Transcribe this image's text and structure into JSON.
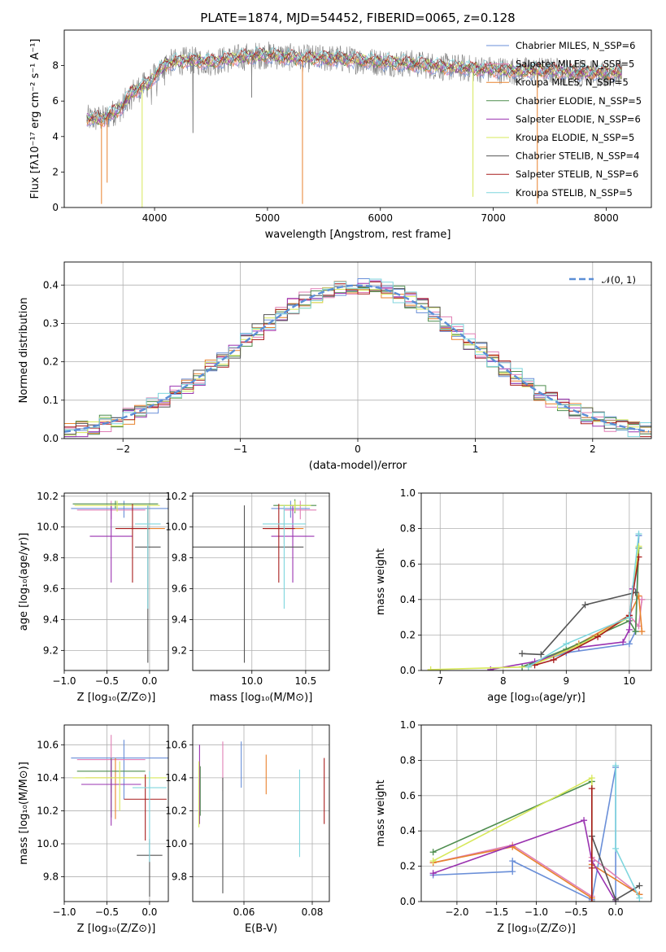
{
  "figure": {
    "title": "PLATE=1874, MJD=54452, FIBERID=0065, z=0.128",
    "colors": {
      "chabrier_miles": "#6a8fd8",
      "salpeter_miles": "#e07fb5",
      "kroupa_miles": "#e8822e",
      "chabrier_elodie": "#4d8d4d",
      "salpeter_elodie": "#9a33b0",
      "kroupa_elodie": "#d7e85a",
      "chabrier_stelib": "#555555",
      "salpeter_stelib": "#a81d1d",
      "kroupa_stelib": "#7fd6de",
      "spectrum_gray": "#808080",
      "gaussian": "#5b8ed6",
      "grid": "#b0b0b0"
    }
  },
  "chart_data": [
    {
      "id": "spectrum",
      "type": "line",
      "xlabel": "wavelength [Angstrom, rest frame]",
      "ylabel": "Flux [fλ10⁻¹⁷ erg cm⁻² s⁻¹ A⁻¹]",
      "xlim": [
        3200,
        8400
      ],
      "ylim": [
        0,
        10
      ],
      "xticks": [
        4000,
        5000,
        6000,
        7000,
        8000
      ],
      "yticks": [
        0,
        2,
        4,
        6,
        8
      ],
      "grid": false,
      "legend_position": "right",
      "legend": [
        "Chabrier MILES, N_SSP=6",
        "Salpeter MILES, N_SSP=5",
        "Kroupa MILES, N_SSP=5",
        "Chabrier ELODIE, N_SSP=5",
        "Salpeter ELODIE, N_SSP=6",
        "Kroupa ELODIE, N_SSP=5",
        "Chabrier STELIB, N_SSP=4",
        "Salpeter STELIB, N_SSP=6",
        "Kroupa STELIB, N_SSP=5"
      ],
      "continuum": {
        "x": [
          3400,
          3550,
          3700,
          3800,
          3950,
          4100,
          4300,
          4500,
          4800,
          5000,
          5300,
          5600,
          6000,
          6300,
          6600,
          6900,
          7200,
          7500,
          7800,
          8100
        ],
        "y": [
          5.0,
          5.0,
          5.6,
          6.5,
          7.0,
          8.1,
          8.3,
          8.2,
          8.5,
          8.6,
          8.4,
          8.4,
          8.2,
          8.1,
          7.9,
          7.8,
          7.7,
          7.7,
          7.6,
          7.6
        ]
      },
      "absorption_lines": [
        {
          "x": 3530,
          "y": 0.2
        },
        {
          "x": 3580,
          "y": 1.4
        },
        {
          "x": 3890,
          "y": 0.0
        },
        {
          "x": 4340,
          "y": 4.2
        },
        {
          "x": 4860,
          "y": 6.2
        },
        {
          "x": 5310,
          "y": 0.2
        },
        {
          "x": 6820,
          "y": 0.6
        },
        {
          "x": 7390,
          "y": 0.2
        }
      ]
    },
    {
      "id": "residuals",
      "type": "line",
      "xlabel": "(data-model)/error",
      "ylabel": "Normed distribution",
      "xlim": [
        -2.5,
        2.5
      ],
      "ylim": [
        0,
        0.46
      ],
      "xticks": [
        -2,
        -1,
        0,
        1,
        2
      ],
      "yticks": [
        0.0,
        0.1,
        0.2,
        0.3,
        0.4
      ],
      "grid": true,
      "legend": [
        "𝒩(0, 1)"
      ],
      "legend_position": "top-right",
      "gaussian": {
        "mu": 0,
        "sigma": 1
      }
    },
    {
      "id": "age_vs_Z",
      "type": "scatter",
      "xlabel": "Z [log₁₀(Z/Z⊙)]",
      "ylabel": "age  [log₁₀(age/yr)]",
      "xlim": [
        -1.0,
        0.22
      ],
      "ylim": [
        9.07,
        10.22
      ],
      "xticks": [
        -1.0,
        -0.5,
        0.0
      ],
      "yticks": [
        9.2,
        9.4,
        9.6,
        9.8,
        10.0,
        10.2
      ],
      "grid": true,
      "points": [
        {
          "c": "chabrier_miles",
          "x": -0.3,
          "y": 10.12,
          "xerr": 0.62,
          "yerr": [
            0.06,
            0.05
          ]
        },
        {
          "c": "salpeter_miles",
          "x": -0.45,
          "y": 10.11,
          "xerr": 0.4,
          "yerr": [
            0.06,
            0.06
          ]
        },
        {
          "c": "kroupa_miles",
          "x": -0.02,
          "y": 9.99,
          "xerr": 0.2,
          "yerr": [
            0.1,
            0.14
          ]
        },
        {
          "c": "chabrier_elodie",
          "x": -0.4,
          "y": 10.15,
          "xerr": 0.5,
          "yerr": [
            0.03,
            0.02
          ]
        },
        {
          "c": "salpeter_elodie",
          "x": -0.45,
          "y": 9.94,
          "xerr": 0.25,
          "yerr": [
            0.3,
            0.2
          ]
        },
        {
          "c": "kroupa_elodie",
          "x": -0.38,
          "y": 10.14,
          "xerr": 0.5,
          "yerr": [
            0.04,
            0.03
          ]
        },
        {
          "c": "chabrier_stelib",
          "x": -0.02,
          "y": 9.87,
          "xerr": 0.15,
          "yerr": [
            0.75,
            0.27
          ]
        },
        {
          "c": "salpeter_stelib",
          "x": -0.2,
          "y": 9.99,
          "xerr": 0.2,
          "yerr": [
            0.35,
            0.16
          ]
        },
        {
          "c": "kroupa_stelib",
          "x": -0.02,
          "y": 10.02,
          "xerr": 0.15,
          "yerr": [
            0.55,
            0.12
          ]
        }
      ]
    },
    {
      "id": "age_vs_mass",
      "type": "scatter",
      "xlabel": "mass [log₁₀(M/M⊙)]",
      "ylabel": "",
      "xlim": [
        9.45,
        10.72
      ],
      "ylim": [
        9.07,
        10.22
      ],
      "xticks": [
        10.0,
        10.5
      ],
      "yticks": [
        9.2,
        9.4,
        9.6,
        9.8,
        10.0,
        10.2
      ],
      "grid": true,
      "points": [
        {
          "c": "chabrier_miles",
          "x": 10.36,
          "y": 10.12,
          "xerr": 0.18,
          "yerr": [
            0.06,
            0.05
          ]
        },
        {
          "c": "salpeter_miles",
          "x": 10.45,
          "y": 10.11,
          "xerr": 0.15,
          "yerr": [
            0.06,
            0.06
          ]
        },
        {
          "c": "kroupa_miles",
          "x": 10.3,
          "y": 9.99,
          "xerr": 0.18,
          "yerr": [
            0.1,
            0.14
          ]
        },
        {
          "c": "chabrier_elodie",
          "x": 10.4,
          "y": 10.14,
          "xerr": 0.2,
          "yerr": [
            0.05,
            0.04
          ]
        },
        {
          "c": "salpeter_elodie",
          "x": 10.38,
          "y": 9.94,
          "xerr": 0.2,
          "yerr": [
            0.3,
            0.2
          ]
        },
        {
          "c": "kroupa_elodie",
          "x": 10.4,
          "y": 10.14,
          "xerr": 0.15,
          "yerr": [
            0.04,
            0.03
          ]
        },
        {
          "c": "chabrier_stelib",
          "x": 9.93,
          "y": 9.87,
          "xerr": 0.55,
          "yerr": [
            0.75,
            0.27
          ]
        },
        {
          "c": "salpeter_stelib",
          "x": 10.25,
          "y": 9.99,
          "xerr": 0.15,
          "yerr": [
            0.35,
            0.16
          ]
        },
        {
          "c": "kroupa_stelib",
          "x": 10.3,
          "y": 10.02,
          "xerr": 0.2,
          "yerr": [
            0.55,
            0.12
          ]
        }
      ]
    },
    {
      "id": "mass_weight_vs_age",
      "type": "line",
      "xlabel": "age  [log₁₀(age/yr)]",
      "ylabel": "mass weight",
      "xlim": [
        6.7,
        10.35
      ],
      "ylim": [
        0,
        1.0
      ],
      "xticks": [
        7,
        8,
        9,
        10
      ],
      "yticks": [
        0.0,
        0.2,
        0.4,
        0.6,
        0.8,
        1.0
      ],
      "grid": true,
      "series": [
        {
          "c": "chabrier_miles",
          "x": [
            8.3,
            9.0,
            10.0,
            10.1,
            10.15
          ],
          "y": [
            0.02,
            0.1,
            0.15,
            0.22,
            0.76
          ]
        },
        {
          "c": "salpeter_miles",
          "x": [
            8.4,
            9.2,
            10.0,
            10.15,
            10.2
          ],
          "y": [
            0.02,
            0.15,
            0.31,
            0.25,
            0.4
          ]
        },
        {
          "c": "kroupa_miles",
          "x": [
            8.4,
            9.2,
            10.0,
            10.15,
            10.2
          ],
          "y": [
            0.02,
            0.15,
            0.31,
            0.42,
            0.22
          ]
        },
        {
          "c": "chabrier_elodie",
          "x": [
            8.3,
            9.0,
            10.0,
            10.1,
            10.15
          ],
          "y": [
            0.02,
            0.12,
            0.28,
            0.22,
            0.69
          ]
        },
        {
          "c": "salpeter_elodie",
          "x": [
            7.8,
            8.5,
            9.2,
            9.9,
            10.0,
            10.05
          ],
          "y": [
            0.005,
            0.05,
            0.13,
            0.16,
            0.23,
            0.46
          ]
        },
        {
          "c": "kroupa_elodie",
          "x": [
            6.85,
            8.4,
            9.2,
            10.0,
            10.15
          ],
          "y": [
            0.005,
            0.02,
            0.14,
            0.3,
            0.7
          ]
        },
        {
          "c": "chabrier_stelib",
          "x": [
            8.3,
            8.6,
            9.3,
            10.1
          ],
          "y": [
            0.095,
            0.09,
            0.37,
            0.44
          ]
        },
        {
          "c": "salpeter_stelib",
          "x": [
            8.5,
            8.8,
            9.5,
            10.0,
            10.15
          ],
          "y": [
            0.03,
            0.06,
            0.19,
            0.31,
            0.64
          ]
        },
        {
          "c": "kroupa_stelib",
          "x": [
            8.4,
            9.0,
            10.0,
            10.15
          ],
          "y": [
            0.02,
            0.15,
            0.3,
            0.77
          ]
        }
      ]
    },
    {
      "id": "mass_vs_Z",
      "type": "scatter",
      "xlabel": "Z [log₁₀(Z/Z⊙)]",
      "ylabel": "mass [log₁₀(M/M⊙)]",
      "xlim": [
        -1.0,
        0.22
      ],
      "ylim": [
        9.65,
        10.72
      ],
      "xticks": [
        -1.0,
        -0.5,
        0.0
      ],
      "yticks": [
        9.8,
        10.0,
        10.2,
        10.4,
        10.6
      ],
      "grid": true,
      "points": [
        {
          "c": "chabrier_miles",
          "x": -0.3,
          "y": 10.52,
          "xerr": 0.62,
          "yerr": [
            0.25,
            0.11
          ]
        },
        {
          "c": "salpeter_miles",
          "x": -0.45,
          "y": 10.51,
          "xerr": 0.4,
          "yerr": [
            0.2,
            0.15
          ]
        },
        {
          "c": "kroupa_miles",
          "x": -0.4,
          "y": 10.4,
          "xerr": 0.35,
          "yerr": [
            0.25,
            0.12
          ]
        },
        {
          "c": "chabrier_elodie",
          "x": -0.45,
          "y": 10.44,
          "xerr": 0.4,
          "yerr": [
            0.28,
            0.08
          ]
        },
        {
          "c": "salpeter_elodie",
          "x": -0.45,
          "y": 10.36,
          "xerr": 0.35,
          "yerr": [
            0.25,
            0.15
          ]
        },
        {
          "c": "kroupa_elodie",
          "x": -0.35,
          "y": 10.4,
          "xerr": 0.55,
          "yerr": [
            0.2,
            0.1
          ]
        },
        {
          "c": "chabrier_stelib",
          "x": 0.0,
          "y": 9.93,
          "xerr": 0.15,
          "yerr": [
            0.25,
            0.1
          ]
        },
        {
          "c": "salpeter_stelib",
          "x": -0.05,
          "y": 10.27,
          "xerr": 0.25,
          "yerr": [
            0.25,
            0.15
          ]
        },
        {
          "c": "kroupa_stelib",
          "x": 0.0,
          "y": 10.34,
          "xerr": 0.2,
          "yerr": [
            0.45,
            0.1
          ]
        }
      ]
    },
    {
      "id": "mass_vs_ebv",
      "type": "scatter",
      "xlabel": "E(B-V)",
      "ylabel": "",
      "xlim": [
        0.045,
        0.085
      ],
      "ylim": [
        9.65,
        10.72
      ],
      "xticks": [
        0.06,
        0.08
      ],
      "yticks": [
        9.8,
        10.0,
        10.2,
        10.4,
        10.6
      ],
      "grid": true,
      "points": [
        {
          "c": "chabrier_miles",
          "x": 0.0592,
          "y": 10.49,
          "yerr": [
            0.15,
            0.13
          ]
        },
        {
          "c": "salpeter_miles",
          "x": 0.0538,
          "y": 10.47,
          "yerr": [
            0.15,
            0.15
          ]
        },
        {
          "c": "kroupa_miles",
          "x": 0.0665,
          "y": 10.42,
          "yerr": [
            0.12,
            0.12
          ]
        },
        {
          "c": "chabrier_elodie",
          "x": 0.0472,
          "y": 10.32,
          "yerr": [
            0.15,
            0.15
          ]
        },
        {
          "c": "salpeter_elodie",
          "x": 0.047,
          "y": 10.36,
          "yerr": [
            0.24,
            0.24
          ]
        },
        {
          "c": "kroupa_elodie",
          "x": 0.0468,
          "y": 10.3,
          "yerr": [
            0.2,
            0.2
          ]
        },
        {
          "c": "chabrier_stelib",
          "x": 0.0538,
          "y": 10.05,
          "yerr": [
            0.35,
            0.35
          ]
        },
        {
          "c": "salpeter_stelib",
          "x": 0.0835,
          "y": 10.32,
          "yerr": [
            0.2,
            0.2
          ]
        },
        {
          "c": "kroupa_stelib",
          "x": 0.0763,
          "y": 10.19,
          "yerr": [
            0.27,
            0.26
          ]
        }
      ]
    },
    {
      "id": "mass_weight_vs_Z",
      "type": "line",
      "xlabel": "Z [log₁₀(Z/Z⊙)]",
      "ylabel": "mass weight",
      "xlim": [
        -2.45,
        0.45
      ],
      "ylim": [
        0,
        1.0
      ],
      "xticks": [
        -2.0,
        -1.5,
        -1.0,
        -0.5,
        0.0
      ],
      "yticks": [
        0.0,
        0.2,
        0.4,
        0.6,
        0.8,
        1.0
      ],
      "grid": true,
      "series": [
        {
          "c": "chabrier_miles",
          "x": [
            -2.3,
            -1.3,
            -1.3,
            -0.3,
            0.0,
            0.0
          ],
          "y": [
            0.15,
            0.17,
            0.23,
            0.01,
            0.76,
            0.0
          ]
        },
        {
          "c": "salpeter_miles",
          "x": [
            -2.3,
            -1.3,
            -0.3,
            -0.3,
            0.3
          ],
          "y": [
            0.22,
            0.32,
            0.03,
            0.25,
            0.04
          ]
        },
        {
          "c": "kroupa_miles",
          "x": [
            -2.3,
            -1.3,
            -0.3,
            -0.3,
            0.3
          ],
          "y": [
            0.22,
            0.31,
            0.02,
            0.21,
            0.04
          ]
        },
        {
          "c": "chabrier_elodie",
          "x": [
            -2.3,
            -0.3,
            -0.3
          ],
          "y": [
            0.28,
            0.68,
            0.0
          ]
        },
        {
          "c": "salpeter_elodie",
          "x": [
            -2.3,
            -0.4,
            -0.3,
            0.0
          ],
          "y": [
            0.16,
            0.46,
            0.23,
            0.0
          ]
        },
        {
          "c": "kroupa_elodie",
          "x": [
            -2.3,
            -0.3,
            -0.3
          ],
          "y": [
            0.23,
            0.7,
            0.0
          ]
        },
        {
          "c": "chabrier_stelib",
          "x": [
            -0.3,
            0.0,
            0.3
          ],
          "y": [
            0.37,
            0.01,
            0.09
          ]
        },
        {
          "c": "salpeter_stelib",
          "x": [
            -0.3,
            -0.3,
            -0.3
          ],
          "y": [
            0.0,
            0.64,
            0.19
          ]
        },
        {
          "c": "kroupa_stelib",
          "x": [
            0.0,
            0.0,
            0.3
          ],
          "y": [
            0.77,
            0.3,
            0.02
          ]
        }
      ]
    }
  ]
}
